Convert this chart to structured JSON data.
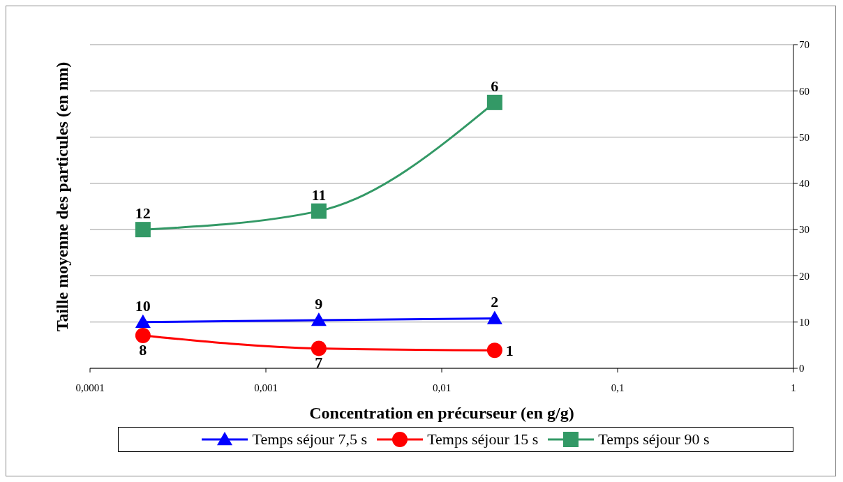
{
  "chart_data": {
    "type": "line",
    "xlabel": "Concentration en précurseur (en g/g)",
    "ylabel": "Taille moyenne des particules (en nm)",
    "log": "x",
    "xlim": [
      0.0001,
      1
    ],
    "xticks": [
      {
        "value": 0.0001,
        "label": "0,0001"
      },
      {
        "value": 0.001,
        "label": "0,001"
      },
      {
        "value": 0.01,
        "label": "0,01"
      },
      {
        "value": 0.1,
        "label": "0,1"
      },
      {
        "value": 1,
        "label": "1"
      }
    ],
    "ylim": [
      0,
      70
    ],
    "yticks": [
      0,
      10,
      20,
      30,
      40,
      50,
      60,
      70
    ],
    "grid": "y",
    "legend": "bottom",
    "x": [
      0.0002,
      0.002,
      0.02
    ],
    "series": [
      {
        "name": "Temps séjour 7,5 s",
        "color": "#0000ff",
        "marker": "triangle",
        "values": [
          10,
          10.4,
          10.8
        ]
      },
      {
        "name": "Temps séjour 15 s",
        "color": "#ff0000",
        "marker": "circle",
        "values": [
          7.1,
          4.3,
          3.9
        ]
      },
      {
        "name": "Temps séjour 90 s",
        "color": "#339966",
        "marker": "square",
        "values": [
          30,
          34,
          57.5
        ]
      }
    ],
    "annotations": [
      {
        "text": "10",
        "x": 0.0002,
        "y": 10
      },
      {
        "text": "9",
        "x": 0.002,
        "y": 10.4
      },
      {
        "text": "2",
        "x": 0.02,
        "y": 10.8
      },
      {
        "text": "8",
        "x": 0.0002,
        "y": 7.1
      },
      {
        "text": "7",
        "x": 0.002,
        "y": 4.3
      },
      {
        "text": "1",
        "x": 0.02,
        "y": 3.9
      },
      {
        "text": "12",
        "x": 0.0002,
        "y": 30
      },
      {
        "text": "11",
        "x": 0.002,
        "y": 34
      },
      {
        "text": "6",
        "x": 0.02,
        "y": 57.5
      }
    ]
  }
}
